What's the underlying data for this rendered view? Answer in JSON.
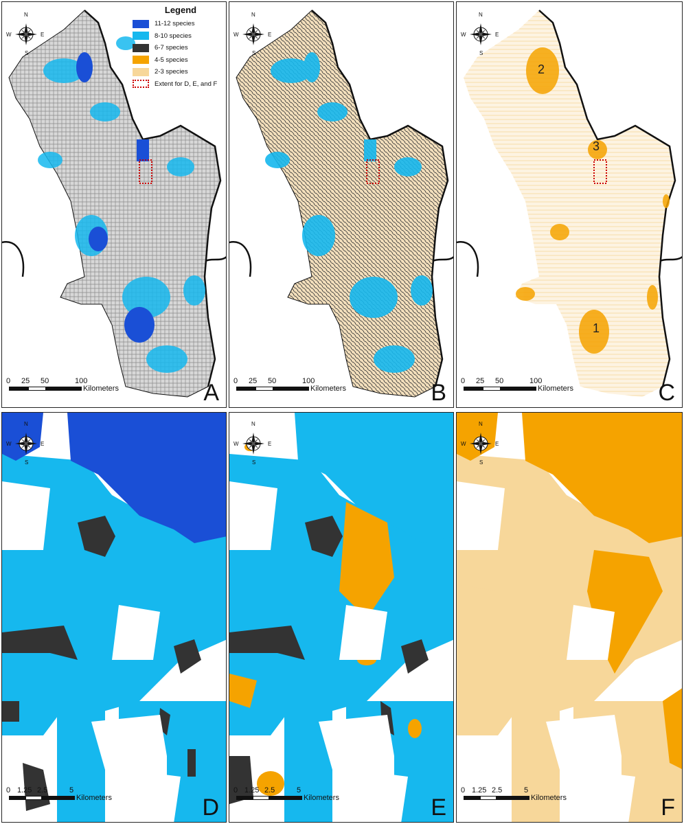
{
  "legend": {
    "title": "Legend",
    "items": [
      {
        "label": "11-12 species",
        "color": "#1a4fd6"
      },
      {
        "label": "8-10 species",
        "color": "#16b8ee"
      },
      {
        "label": "6-7 species",
        "color": "#333333"
      },
      {
        "label": "4-5 species",
        "color": "#f5a300"
      },
      {
        "label": "2-3 species",
        "color": "#f7d79a"
      },
      {
        "label": "Extent for D, E, and F",
        "color": "#cc0000",
        "style": "dotted-outline"
      }
    ]
  },
  "compass": {
    "n": "N",
    "s": "S",
    "e": "E",
    "w": "W"
  },
  "scales": {
    "large": {
      "ticks": [
        "0",
        "25",
        "50",
        "100"
      ],
      "unit": "Kilometers"
    },
    "small": {
      "ticks": [
        "0",
        "1.25",
        "2.5",
        "5"
      ],
      "unit": "Kilometers"
    }
  },
  "panels": [
    {
      "letter": "A",
      "map": "overview-richness"
    },
    {
      "letter": "B",
      "map": "overview-richness-alt"
    },
    {
      "letter": "C",
      "map": "overview-low-richness"
    },
    {
      "letter": "D",
      "map": "detail-high"
    },
    {
      "letter": "E",
      "map": "detail-mid"
    },
    {
      "letter": "F",
      "map": "detail-low"
    }
  ],
  "hotspot_labels": [
    "1",
    "2",
    "3"
  ]
}
